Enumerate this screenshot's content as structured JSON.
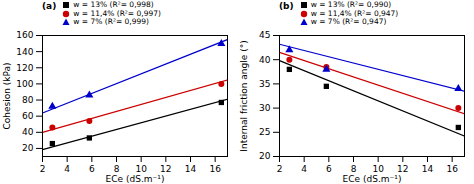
{
  "chart_data": [
    {
      "type": "scatter",
      "annotations": [
        "(a)"
      ],
      "xlabel": "ECe (dS.m⁻¹)",
      "ylabel": "Cohesion (kPa)",
      "xlim": [
        2,
        17
      ],
      "ylim": [
        10,
        160
      ],
      "xticks": [
        2,
        4,
        6,
        8,
        10,
        12,
        14,
        16
      ],
      "yticks": [
        20,
        40,
        60,
        80,
        100,
        120,
        140,
        160
      ],
      "grid": false,
      "legend": "top",
      "series": [
        {
          "name": "w = 13% (R²= 0,998)",
          "color": "#000000",
          "marker": "square",
          "x": [
            2.8,
            5.8,
            16.5
          ],
          "values": [
            26,
            33,
            77
          ],
          "fit": {
            "x": [
              2.0,
              17.0
            ],
            "values": [
              18.5,
              81.0
            ]
          }
        },
        {
          "name": "w = 11,4% (R²= 0,997)",
          "color": "#cc0000",
          "marker": "circle",
          "x": [
            2.8,
            5.8,
            16.5
          ],
          "values": [
            46,
            54,
            100
          ],
          "fit": {
            "x": [
              2.0,
              17.0
            ],
            "values": [
              40.0,
              105.0
            ]
          }
        },
        {
          "name": "w = 7% (R²= 0,999)",
          "color": "#0000cc",
          "marker": "triangle",
          "x": [
            2.8,
            5.8,
            16.5
          ],
          "values": [
            72,
            86,
            150
          ],
          "fit": {
            "x": [
              2.0,
              17.0
            ],
            "values": [
              64.0,
              155.0
            ]
          }
        }
      ]
    },
    {
      "type": "scatter",
      "annotations": [
        "(b)"
      ],
      "xlabel": "ECe (dS.m⁻¹)",
      "ylabel": "Internal friction angle (°)",
      "xlim": [
        2,
        17
      ],
      "ylim": [
        20,
        45
      ],
      "xticks": [
        2,
        4,
        6,
        8,
        10,
        12,
        14,
        16
      ],
      "yticks": [
        20,
        25,
        30,
        35,
        40,
        45
      ],
      "grid": false,
      "legend": "top",
      "series": [
        {
          "name": "w = 13% (R²= 0,990)",
          "color": "#000000",
          "marker": "square",
          "x": [
            2.8,
            5.8,
            16.5
          ],
          "values": [
            38,
            34.5,
            26
          ],
          "fit": {
            "x": [
              2.0,
              17.0
            ],
            "values": [
              39.8,
              24.2
            ]
          }
        },
        {
          "name": "w = 11,4% (R²= 0,947)",
          "color": "#cc0000",
          "marker": "circle",
          "x": [
            2.8,
            5.8,
            16.5
          ],
          "values": [
            40,
            38.5,
            30
          ],
          "fit": {
            "x": [
              2.0,
              17.0
            ],
            "values": [
              41.5,
              28.8
            ]
          }
        },
        {
          "name": "w = 7% (R²= 0,947)",
          "color": "#0000cc",
          "marker": "triangle",
          "x": [
            2.8,
            5.8,
            16.5
          ],
          "values": [
            42,
            38,
            34
          ],
          "fit": {
            "x": [
              2.0,
              17.0
            ],
            "values": [
              43.2,
              33.5
            ]
          }
        }
      ]
    }
  ]
}
